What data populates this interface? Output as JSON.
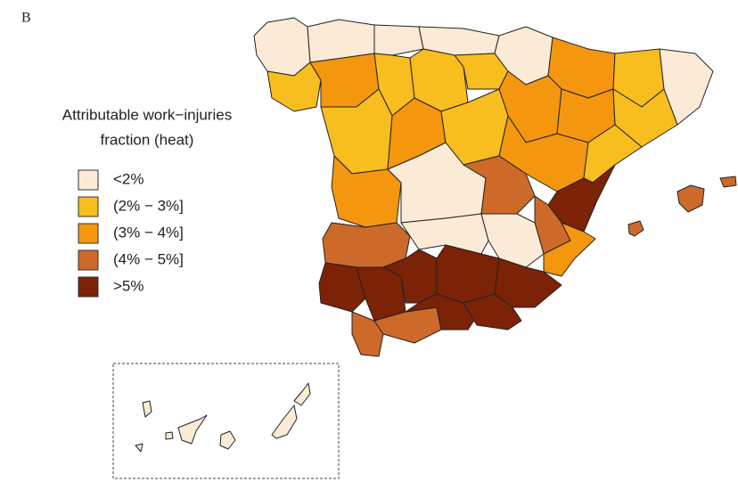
{
  "panel_label": "B",
  "legend": {
    "title": [
      "Attributable work−injuries",
      "fraction (heat)"
    ],
    "items": [
      {
        "label": "<2%",
        "color": "#fbead5"
      },
      {
        "label": "(2% − 3%]",
        "color": "#f8bd1e"
      },
      {
        "label": "(3% − 4%]",
        "color": "#f4970f"
      },
      {
        "label": "(4% − 5%]",
        "color": "#cd6a2a"
      },
      {
        "label": ">5%",
        "color": "#7b2207"
      }
    ]
  }
}
